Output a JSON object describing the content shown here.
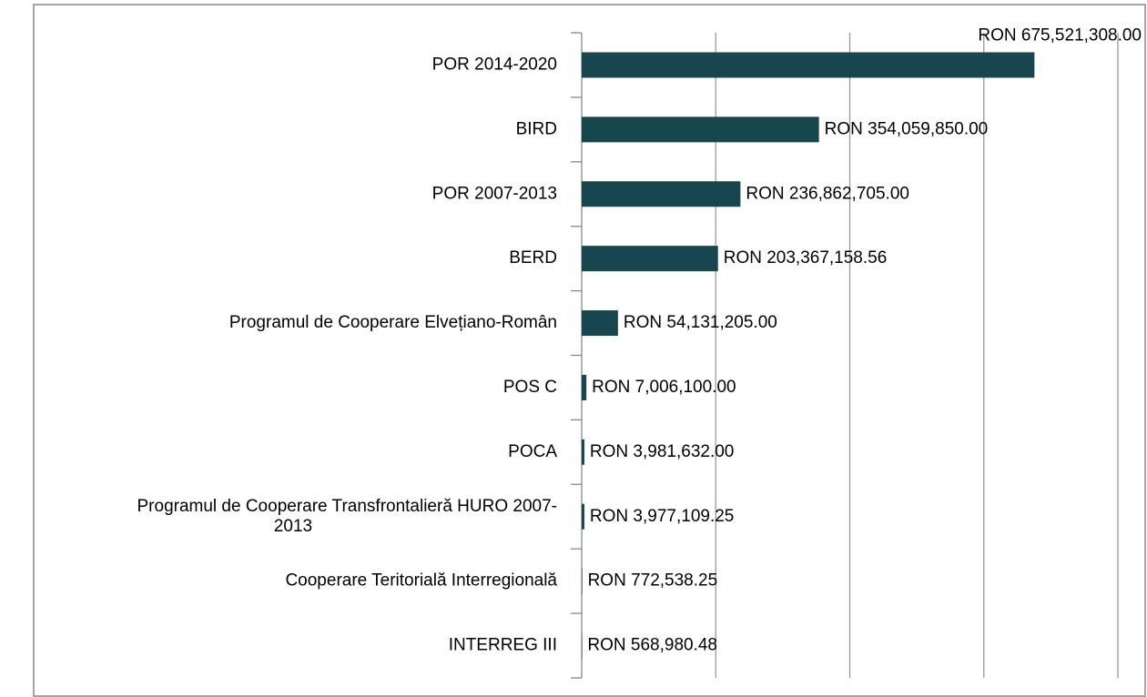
{
  "chart_data": {
    "type": "bar",
    "orientation": "horizontal",
    "categories": [
      "POR 2014-2020",
      "BIRD",
      "POR 2007-2013",
      "BERD",
      "Programul de Cooperare Elvețiano-Român",
      "POS C",
      "POCA",
      "Programul de Cooperare Transfrontalieră HURO 2007-2013",
      "Cooperare Teritorială Interregională",
      "INTERREG III"
    ],
    "values": [
      675521308.0,
      354059850.0,
      236862705.0,
      203367158.56,
      54131205.0,
      7006100.0,
      3981632.0,
      3977109.25,
      772538.25,
      568980.48
    ],
    "value_labels": [
      "RON 675,521,308.00",
      "RON 354,059,850.00",
      "RON 236,862,705.00",
      "RON 203,367,158.56",
      "RON 54,131,205.00",
      "RON 7,006,100.00",
      "RON 3,981,632.00",
      "RON 3,977,109.25",
      "RON 772,538.25",
      "RON 568,980.48"
    ],
    "color": "#17464f",
    "xlim": [
      0,
      800000000
    ],
    "xticks": [
      0,
      200000000,
      400000000,
      600000000,
      800000000
    ],
    "grid": true
  }
}
